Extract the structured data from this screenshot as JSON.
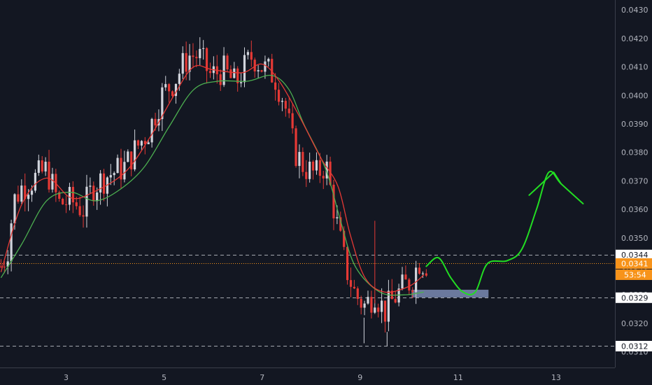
{
  "chart_data": {
    "type": "candlestick",
    "title": "",
    "xlabel": "",
    "ylabel": "",
    "ylim": [
      0.03045,
      0.04335
    ],
    "xlim": [
      1.65,
      14.2
    ],
    "grid": false,
    "y_ticks": [
      0.031,
      0.032,
      0.033,
      0.034,
      0.035,
      0.036,
      0.037,
      0.038,
      0.039,
      0.04,
      0.041,
      0.042,
      0.043
    ],
    "y_tick_labels": [
      "0.0310",
      "0.0320",
      "0.0330",
      "0.0340",
      "0.0350",
      "0.0360",
      "0.0370",
      "0.0380",
      "0.0390",
      "0.0400",
      "0.0410",
      "0.0420",
      "0.0430"
    ],
    "x_ticks": [
      3,
      5,
      7,
      9,
      11,
      13
    ],
    "x_tick_labels": [
      "3",
      "5",
      "7",
      "9",
      "11",
      "13"
    ],
    "price_anchors": [
      [
        1.67,
        0.034
      ],
      [
        1.8,
        0.0345
      ],
      [
        1.93,
        0.0363
      ],
      [
        2.1,
        0.0368
      ],
      [
        2.3,
        0.037
      ],
      [
        2.6,
        0.0374
      ],
      [
        2.85,
        0.0362
      ],
      [
        3.1,
        0.0363
      ],
      [
        3.35,
        0.036
      ],
      [
        3.55,
        0.0368
      ],
      [
        3.85,
        0.0372
      ],
      [
        4.2,
        0.0375
      ],
      [
        4.45,
        0.0382
      ],
      [
        4.7,
        0.0388
      ],
      [
        4.95,
        0.04
      ],
      [
        5.2,
        0.0405
      ],
      [
        5.5,
        0.0414
      ],
      [
        5.7,
        0.0414
      ],
      [
        5.95,
        0.0407
      ],
      [
        6.2,
        0.0409
      ],
      [
        6.45,
        0.0404
      ],
      [
        6.65,
        0.041
      ],
      [
        6.8,
        0.0414
      ],
      [
        7.0,
        0.041
      ],
      [
        7.25,
        0.0407
      ],
      [
        7.45,
        0.0398
      ],
      [
        7.65,
        0.0381
      ],
      [
        7.85,
        0.0375
      ],
      [
        8.1,
        0.0372
      ],
      [
        8.3,
        0.0376
      ],
      [
        8.5,
        0.0357
      ],
      [
        8.7,
        0.034
      ],
      [
        8.9,
        0.033
      ],
      [
        9.1,
        0.0326
      ],
      [
        9.3,
        0.0331
      ],
      [
        9.5,
        0.0324
      ],
      [
        9.7,
        0.0329
      ],
      [
        9.9,
        0.0333
      ],
      [
        10.05,
        0.0335
      ],
      [
        10.2,
        0.0342
      ],
      [
        10.35,
        0.0341
      ]
    ],
    "ema_fast": [
      [
        1.67,
        0.0338
      ],
      [
        2.1,
        0.0362
      ],
      [
        2.6,
        0.0371
      ],
      [
        3.1,
        0.0364
      ],
      [
        3.55,
        0.0366
      ],
      [
        4.2,
        0.0373
      ],
      [
        4.7,
        0.0385
      ],
      [
        5.2,
        0.04
      ],
      [
        5.6,
        0.041
      ],
      [
        6.0,
        0.0409
      ],
      [
        6.6,
        0.0408
      ],
      [
        7.0,
        0.0411
      ],
      [
        7.35,
        0.0405
      ],
      [
        7.75,
        0.0393
      ],
      [
        8.2,
        0.0378
      ],
      [
        8.55,
        0.0368
      ],
      [
        8.8,
        0.0351
      ],
      [
        9.1,
        0.0336
      ],
      [
        9.5,
        0.0331
      ],
      [
        10.0,
        0.0333
      ],
      [
        10.3,
        0.0337
      ]
    ],
    "ema_slow": [
      [
        1.67,
        0.0336
      ],
      [
        2.1,
        0.0348
      ],
      [
        2.6,
        0.0363
      ],
      [
        3.1,
        0.0366
      ],
      [
        3.6,
        0.0363
      ],
      [
        4.1,
        0.0367
      ],
      [
        4.6,
        0.0375
      ],
      [
        5.1,
        0.0389
      ],
      [
        5.6,
        0.0402
      ],
      [
        6.1,
        0.0405
      ],
      [
        6.7,
        0.0405
      ],
      [
        7.2,
        0.0407
      ],
      [
        7.55,
        0.0402
      ],
      [
        7.85,
        0.039
      ],
      [
        8.3,
        0.0374
      ],
      [
        8.6,
        0.0356
      ],
      [
        8.9,
        0.034
      ],
      [
        9.4,
        0.0331
      ],
      [
        9.9,
        0.033
      ],
      [
        10.3,
        0.0331
      ]
    ],
    "annotations": {
      "levels": [
        {
          "value": 0.0344,
          "style": "dashed",
          "color": "#c8cbd2"
        },
        {
          "value": 0.0329,
          "style": "dashed",
          "color": "#c8cbd2"
        },
        {
          "value": 0.0312,
          "style": "dashed",
          "color": "#c8cbd2"
        },
        {
          "value": 0.0341,
          "style": "dotted",
          "color": "#f7931a"
        }
      ],
      "support_box": {
        "x0": 10.05,
        "x1": 11.62,
        "y0": 0.03291,
        "y1": 0.03318,
        "color": "#7b8bb3"
      },
      "projection": [
        [
          10.35,
          0.034
        ],
        [
          10.6,
          0.0343
        ],
        [
          10.85,
          0.0336
        ],
        [
          11.1,
          0.0331
        ],
        [
          11.35,
          0.0331
        ],
        [
          11.6,
          0.0341
        ],
        [
          12.0,
          0.0342
        ],
        [
          12.3,
          0.0346
        ],
        [
          12.6,
          0.036
        ],
        [
          12.85,
          0.0373
        ],
        [
          13.1,
          0.0369
        ],
        [
          13.55,
          0.0362
        ]
      ],
      "projection_arrow": [
        [
          12.45,
          0.0365
        ],
        [
          12.95,
          0.0373
        ],
        [
          13.1,
          0.0369
        ]
      ]
    },
    "price_tags": [
      {
        "value": 0.0344,
        "label": "0.0344",
        "bg": "#ffffff",
        "fg": "#131722"
      },
      {
        "value": 0.0341,
        "label": "0.0341",
        "bg": "#f7931a",
        "fg": "#ffffff"
      },
      {
        "value": 0.0329,
        "label": "0.0329",
        "bg": "#ffffff",
        "fg": "#131722"
      },
      {
        "value": 0.0312,
        "label": "0.0312",
        "bg": "#ffffff",
        "fg": "#131722"
      }
    ],
    "countdown": "53:54",
    "colors": {
      "background": "#131722",
      "up_candle": "#d1d4dc",
      "down_candle": "#e53935",
      "ema_fast": "#e53935",
      "ema_slow": "#4caf50",
      "projection": "#22dd22",
      "axis_text": "#b2b5be"
    }
  }
}
